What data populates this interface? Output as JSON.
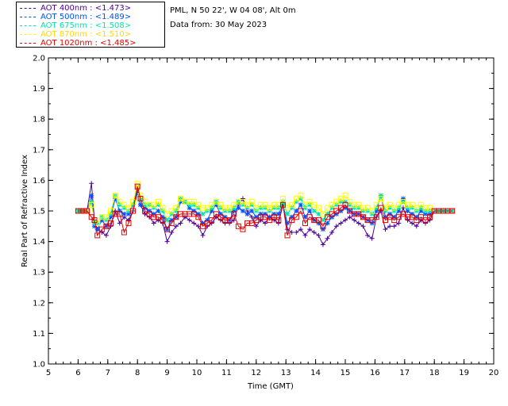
{
  "header": {
    "site_line": "PML, N 50 22', W 04 08', Alt 0m",
    "date_line": "Data from: 30 May 2023"
  },
  "legend": [
    {
      "label": "AOT  400nm : <1.473>",
      "color": "#4B0096"
    },
    {
      "label": "AOT  500nm : <1.489>",
      "color": "#0050FF"
    },
    {
      "label": "AOT  675nm : <1.508>",
      "color": "#00E6AA"
    },
    {
      "label": "AOT  870nm : <1.510>",
      "color": "#FFFF00"
    },
    {
      "label": "AOT 1020nm : <1.485>",
      "color": "#E60000"
    }
  ],
  "chart_data": {
    "type": "line",
    "xlabel": "Time (GMT)",
    "ylabel": "Real Part of Refractive Index",
    "xlim": [
      5,
      20
    ],
    "ylim": [
      1.0,
      2.0
    ],
    "xticks": [
      "5",
      "6",
      "7",
      "8",
      "9",
      "10",
      "11",
      "12",
      "13",
      "14",
      "15",
      "16",
      "17",
      "18",
      "19",
      "20"
    ],
    "yticks": [
      "1.0",
      "1.1",
      "1.2",
      "1.3",
      "1.4",
      "1.5",
      "1.6",
      "1.7",
      "1.8",
      "1.9",
      "2.0"
    ],
    "x": [
      6.0,
      6.1,
      6.2,
      6.3,
      6.45,
      6.55,
      6.65,
      6.8,
      6.95,
      7.1,
      7.25,
      7.4,
      7.55,
      7.7,
      7.85,
      8.0,
      8.1,
      8.25,
      8.4,
      8.55,
      8.7,
      8.85,
      9.0,
      9.15,
      9.3,
      9.45,
      9.6,
      9.75,
      9.9,
      10.05,
      10.2,
      10.35,
      10.5,
      10.65,
      10.8,
      10.95,
      11.1,
      11.25,
      11.4,
      11.55,
      11.7,
      11.85,
      12.0,
      12.15,
      12.3,
      12.45,
      12.6,
      12.75,
      12.9,
      13.05,
      13.2,
      13.35,
      13.5,
      13.65,
      13.8,
      13.95,
      14.1,
      14.25,
      14.4,
      14.55,
      14.7,
      14.85,
      15.0,
      15.15,
      15.3,
      15.45,
      15.6,
      15.75,
      15.9,
      16.05,
      16.2,
      16.35,
      16.5,
      16.65,
      16.8,
      16.95,
      17.1,
      17.25,
      17.4,
      17.55,
      17.7,
      17.85,
      18.0,
      18.15,
      18.3,
      18.45,
      18.6
    ],
    "series": [
      {
        "name": "AOT  400nm",
        "color": "#4B0096",
        "marker": "plus",
        "values": [
          1.5,
          1.5,
          1.5,
          1.5,
          1.59,
          1.47,
          1.44,
          1.43,
          1.42,
          1.45,
          1.5,
          1.46,
          1.48,
          1.47,
          1.5,
          1.56,
          1.52,
          1.49,
          1.48,
          1.46,
          1.47,
          1.46,
          1.4,
          1.43,
          1.45,
          1.46,
          1.48,
          1.47,
          1.46,
          1.45,
          1.42,
          1.45,
          1.46,
          1.48,
          1.47,
          1.46,
          1.46,
          1.47,
          1.52,
          1.54,
          1.5,
          1.48,
          1.45,
          1.47,
          1.46,
          1.48,
          1.47,
          1.46,
          1.52,
          1.44,
          1.43,
          1.43,
          1.44,
          1.42,
          1.44,
          1.43,
          1.42,
          1.39,
          1.41,
          1.43,
          1.45,
          1.46,
          1.47,
          1.48,
          1.47,
          1.46,
          1.45,
          1.42,
          1.41,
          1.48,
          1.5,
          1.44,
          1.45,
          1.45,
          1.46,
          1.51,
          1.47,
          1.46,
          1.45,
          1.47,
          1.46,
          1.47,
          1.5,
          1.5,
          1.5,
          1.5,
          1.5
        ]
      },
      {
        "name": "AOT  500nm",
        "color": "#0050FF",
        "marker": "star",
        "values": [
          1.5,
          1.5,
          1.5,
          1.5,
          1.55,
          1.45,
          1.44,
          1.47,
          1.45,
          1.48,
          1.54,
          1.5,
          1.49,
          1.49,
          1.52,
          1.57,
          1.52,
          1.51,
          1.5,
          1.49,
          1.5,
          1.48,
          1.44,
          1.47,
          1.48,
          1.53,
          1.53,
          1.51,
          1.5,
          1.49,
          1.46,
          1.47,
          1.5,
          1.52,
          1.49,
          1.48,
          1.47,
          1.5,
          1.51,
          1.5,
          1.49,
          1.5,
          1.48,
          1.49,
          1.49,
          1.48,
          1.49,
          1.49,
          1.52,
          1.46,
          1.48,
          1.5,
          1.52,
          1.48,
          1.5,
          1.47,
          1.46,
          1.44,
          1.46,
          1.48,
          1.49,
          1.5,
          1.51,
          1.5,
          1.49,
          1.49,
          1.48,
          1.47,
          1.46,
          1.5,
          1.55,
          1.48,
          1.49,
          1.48,
          1.5,
          1.54,
          1.5,
          1.49,
          1.48,
          1.5,
          1.49,
          1.49,
          1.5,
          1.5,
          1.5,
          1.5,
          1.5
        ]
      },
      {
        "name": "AOT  675nm",
        "color": "#00E6AA",
        "marker": "star",
        "values": [
          1.5,
          1.5,
          1.5,
          1.5,
          1.53,
          1.46,
          1.46,
          1.48,
          1.47,
          1.49,
          1.55,
          1.52,
          1.51,
          1.5,
          1.52,
          1.58,
          1.54,
          1.52,
          1.52,
          1.51,
          1.52,
          1.5,
          1.47,
          1.49,
          1.5,
          1.54,
          1.53,
          1.52,
          1.52,
          1.51,
          1.49,
          1.5,
          1.51,
          1.53,
          1.51,
          1.5,
          1.5,
          1.51,
          1.53,
          1.52,
          1.51,
          1.52,
          1.5,
          1.51,
          1.51,
          1.5,
          1.51,
          1.51,
          1.53,
          1.49,
          1.51,
          1.53,
          1.54,
          1.51,
          1.52,
          1.5,
          1.49,
          1.47,
          1.49,
          1.51,
          1.52,
          1.53,
          1.53,
          1.52,
          1.51,
          1.51,
          1.5,
          1.5,
          1.49,
          1.51,
          1.55,
          1.5,
          1.51,
          1.5,
          1.51,
          1.53,
          1.51,
          1.51,
          1.5,
          1.51,
          1.5,
          1.5,
          1.5,
          1.5,
          1.5,
          1.5,
          1.5
        ]
      },
      {
        "name": "AOT  870nm",
        "color": "#FFFF00",
        "marker": "square",
        "values": [
          1.5,
          1.5,
          1.5,
          1.5,
          1.52,
          1.47,
          1.46,
          1.48,
          1.48,
          1.5,
          1.55,
          1.53,
          1.52,
          1.51,
          1.53,
          1.59,
          1.55,
          1.53,
          1.52,
          1.52,
          1.53,
          1.51,
          1.49,
          1.5,
          1.51,
          1.54,
          1.53,
          1.53,
          1.53,
          1.52,
          1.51,
          1.51,
          1.52,
          1.53,
          1.52,
          1.51,
          1.51,
          1.52,
          1.53,
          1.53,
          1.52,
          1.53,
          1.51,
          1.52,
          1.52,
          1.51,
          1.52,
          1.52,
          1.54,
          1.51,
          1.52,
          1.54,
          1.55,
          1.52,
          1.53,
          1.52,
          1.51,
          1.49,
          1.51,
          1.52,
          1.53,
          1.54,
          1.55,
          1.53,
          1.52,
          1.52,
          1.51,
          1.51,
          1.5,
          1.52,
          1.54,
          1.51,
          1.52,
          1.51,
          1.52,
          1.53,
          1.52,
          1.52,
          1.51,
          1.52,
          1.51,
          1.51,
          1.5,
          1.5,
          1.5,
          1.5,
          1.5
        ]
      },
      {
        "name": "AOT 1020nm",
        "color": "#E60000",
        "marker": "square",
        "values": [
          1.5,
          1.5,
          1.5,
          1.5,
          1.48,
          1.47,
          1.42,
          1.44,
          1.45,
          1.46,
          1.49,
          1.49,
          1.43,
          1.46,
          1.5,
          1.58,
          1.54,
          1.5,
          1.49,
          1.48,
          1.48,
          1.47,
          1.44,
          1.46,
          1.48,
          1.49,
          1.49,
          1.49,
          1.49,
          1.48,
          1.45,
          1.46,
          1.47,
          1.49,
          1.48,
          1.47,
          1.47,
          1.49,
          1.45,
          1.44,
          1.46,
          1.46,
          1.47,
          1.48,
          1.48,
          1.47,
          1.48,
          1.47,
          1.52,
          1.42,
          1.47,
          1.48,
          1.5,
          1.46,
          1.48,
          1.47,
          1.47,
          1.45,
          1.48,
          1.49,
          1.5,
          1.51,
          1.52,
          1.5,
          1.49,
          1.49,
          1.48,
          1.47,
          1.47,
          1.48,
          1.51,
          1.47,
          1.48,
          1.47,
          1.48,
          1.49,
          1.48,
          1.48,
          1.47,
          1.48,
          1.47,
          1.48,
          1.5,
          1.5,
          1.5,
          1.5,
          1.5
        ]
      }
    ]
  }
}
